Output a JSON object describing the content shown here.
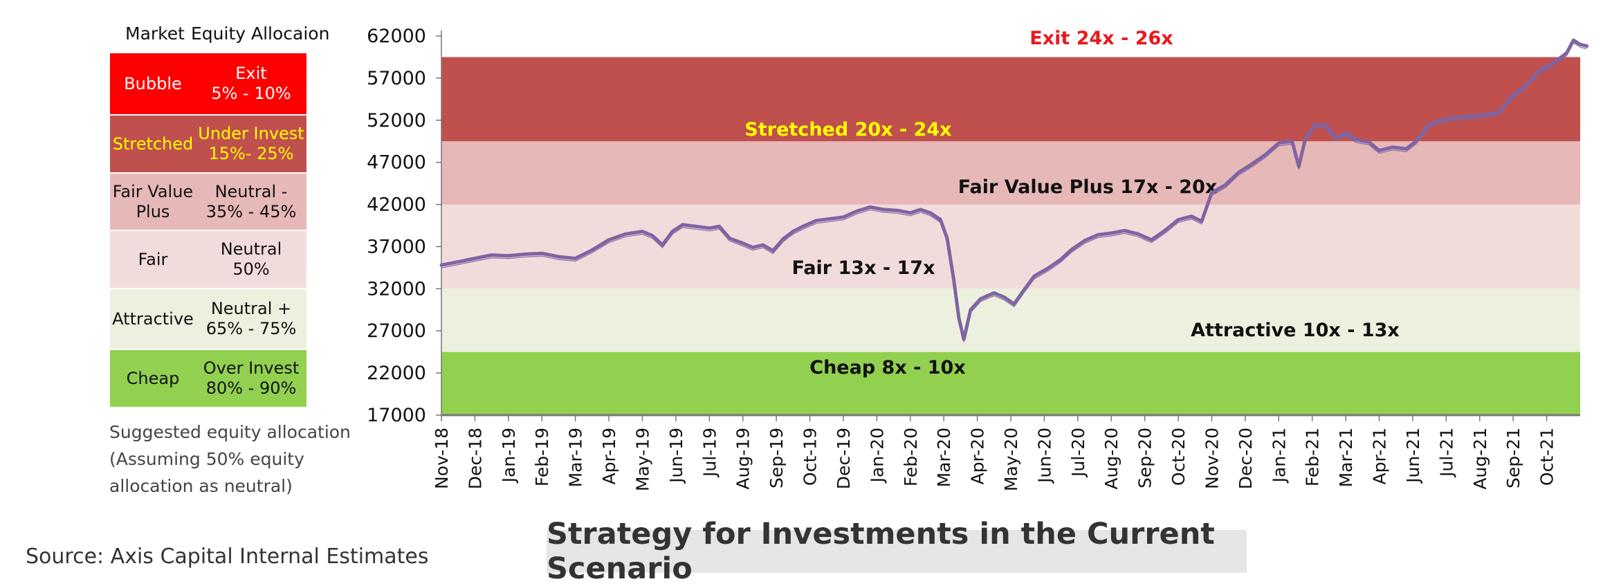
{
  "table": {
    "header_market": "Market",
    "header_allocation": "Equity Allocaion",
    "rows": [
      {
        "market": "Bubble",
        "allocation_1": "Exit",
        "allocation_2": "5% - 10%",
        "bg": "#ff0000",
        "fg": "#ffffff"
      },
      {
        "market": "Stretched",
        "allocation_1": "Under Invest",
        "allocation_2": "15%- 25%",
        "bg": "#c0504d",
        "fg": "#ffff00"
      },
      {
        "market_1": "Fair Value",
        "market_2": "Plus",
        "allocation_1": "Neutral -",
        "allocation_2": "35% - 45%",
        "bg": "#e6b8b7",
        "fg": "#111111"
      },
      {
        "market": "Fair",
        "allocation_1": "Neutral",
        "allocation_2": "50%",
        "bg": "#f2dcdb",
        "fg": "#111111"
      },
      {
        "market": "Attractive",
        "allocation_1": "Neutral +",
        "allocation_2": "65% - 75%",
        "bg": "#ebf1de",
        "fg": "#111111"
      },
      {
        "market": "Cheap",
        "allocation_1": "Over Invest",
        "allocation_2": "80% - 90%",
        "bg": "#92d050",
        "fg": "#111111"
      }
    ],
    "note_lines": [
      "Suggested equity allocation",
      "(Assuming 50% equity",
      "allocation as neutral)"
    ]
  },
  "source": "Source: Axis Capital Internal Estimates",
  "banner_title": "Strategy for Investments in the Current Scenario",
  "chart_data": {
    "type": "line",
    "ylim": [
      17000,
      62000
    ],
    "yticks": [
      17000,
      22000,
      27000,
      32000,
      37000,
      42000,
      47000,
      52000,
      57000,
      62000
    ],
    "x_tick_labels": [
      "Nov-18",
      "Dec-18",
      "Jan-19",
      "Feb-19",
      "Mar-19",
      "Apr-19",
      "May-19",
      "Jun-19",
      "Jul-19",
      "Aug-19",
      "Sep-19",
      "Oct-19",
      "Dec-19",
      "Jan-20",
      "Feb-20",
      "Mar-20",
      "Apr-20",
      "May-20",
      "Jun-20",
      "Jul-20",
      "Aug-20",
      "Sep-20",
      "Oct-20",
      "Nov-20",
      "Dec-20",
      "Jan-21",
      "Feb-21",
      "Mar-21",
      "Apr-21",
      "Jun-21",
      "Jul-21",
      "Aug-21",
      "Sep-21",
      "Oct-21"
    ],
    "zones": [
      {
        "label": "Cheap 8x - 10x",
        "from": 17000,
        "to": 24500,
        "color": "#92d050",
        "label_color": "#111111"
      },
      {
        "label": "Attractive  10x - 13x",
        "from": 24500,
        "to": 32000,
        "color": "#ebf1de",
        "label_color": "#111111"
      },
      {
        "label": "Fair 13x - 17x",
        "from": 32000,
        "to": 42000,
        "color": "#f2dcdb",
        "label_color": "#111111"
      },
      {
        "label": "Fair Value Plus 17x - 20x",
        "from": 42000,
        "to": 49500,
        "color": "#e6b8b7",
        "label_color": "#111111"
      },
      {
        "label": "Stretched 20x - 24x",
        "from": 49500,
        "to": 59500,
        "color": "#c0504d",
        "label_color": "#ffff00"
      },
      {
        "label": "Exit 24x - 26x",
        "from": 59500,
        "to": 62000,
        "color": "#ffffff",
        "label_color": "#e8191e"
      }
    ],
    "series": [
      {
        "color": "#8064a2",
        "values": [
          [
            0,
            34800
          ],
          [
            0.5,
            35200
          ],
          [
            1,
            35600
          ],
          [
            1.5,
            36000
          ],
          [
            2,
            35900
          ],
          [
            2.5,
            36100
          ],
          [
            3,
            36200
          ],
          [
            3.5,
            35800
          ],
          [
            4,
            35600
          ],
          [
            4.5,
            36600
          ],
          [
            5,
            37800
          ],
          [
            5.5,
            38500
          ],
          [
            6,
            38800
          ],
          [
            6.3,
            38300
          ],
          [
            6.6,
            37200
          ],
          [
            6.9,
            38800
          ],
          [
            7.2,
            39600
          ],
          [
            7.6,
            39400
          ],
          [
            8,
            39200
          ],
          [
            8.3,
            39400
          ],
          [
            8.6,
            38000
          ],
          [
            9,
            37400
          ],
          [
            9.3,
            36900
          ],
          [
            9.6,
            37200
          ],
          [
            9.9,
            36500
          ],
          [
            10.2,
            37900
          ],
          [
            10.5,
            38800
          ],
          [
            10.8,
            39400
          ],
          [
            11.2,
            40100
          ],
          [
            11.6,
            40300
          ],
          [
            12,
            40500
          ],
          [
            12.4,
            41200
          ],
          [
            12.8,
            41700
          ],
          [
            13.2,
            41400
          ],
          [
            13.6,
            41300
          ],
          [
            14,
            41000
          ],
          [
            14.3,
            41400
          ],
          [
            14.6,
            41000
          ],
          [
            14.9,
            40200
          ],
          [
            15.1,
            38000
          ],
          [
            15.3,
            33000
          ],
          [
            15.45,
            28500
          ],
          [
            15.6,
            26000
          ],
          [
            15.8,
            29500
          ],
          [
            16.1,
            30800
          ],
          [
            16.5,
            31500
          ],
          [
            16.8,
            31000
          ],
          [
            17.1,
            30200
          ],
          [
            17.4,
            31900
          ],
          [
            17.7,
            33500
          ],
          [
            18.1,
            34400
          ],
          [
            18.5,
            35500
          ],
          [
            18.8,
            36600
          ],
          [
            19.2,
            37700
          ],
          [
            19.6,
            38400
          ],
          [
            20,
            38600
          ],
          [
            20.4,
            38900
          ],
          [
            20.8,
            38500
          ],
          [
            21.2,
            37800
          ],
          [
            21.6,
            38900
          ],
          [
            22,
            40200
          ],
          [
            22.4,
            40600
          ],
          [
            22.7,
            40000
          ],
          [
            23,
            43400
          ],
          [
            23.4,
            44300
          ],
          [
            23.8,
            45800
          ],
          [
            24.2,
            46800
          ],
          [
            24.6,
            47900
          ],
          [
            25,
            49300
          ],
          [
            25.4,
            49500
          ],
          [
            25.6,
            46500
          ],
          [
            25.8,
            49900
          ],
          [
            26.1,
            51500
          ],
          [
            26.4,
            51400
          ],
          [
            26.7,
            49900
          ],
          [
            27,
            50500
          ],
          [
            27.3,
            49700
          ],
          [
            27.7,
            49400
          ],
          [
            28,
            48400
          ],
          [
            28.4,
            48800
          ],
          [
            28.8,
            48600
          ],
          [
            29.1,
            49500
          ],
          [
            29.5,
            51500
          ],
          [
            29.9,
            52100
          ],
          [
            30.3,
            52300
          ],
          [
            30.8,
            52500
          ],
          [
            31.3,
            52700
          ],
          [
            31.6,
            53000
          ],
          [
            32,
            55000
          ],
          [
            32.4,
            56200
          ],
          [
            32.8,
            58000
          ],
          [
            33.1,
            58500
          ],
          [
            33.4,
            59400
          ],
          [
            33.6,
            60000
          ],
          [
            33.8,
            61500
          ],
          [
            34,
            61000
          ],
          [
            34.2,
            60800
          ]
        ]
      }
    ]
  }
}
